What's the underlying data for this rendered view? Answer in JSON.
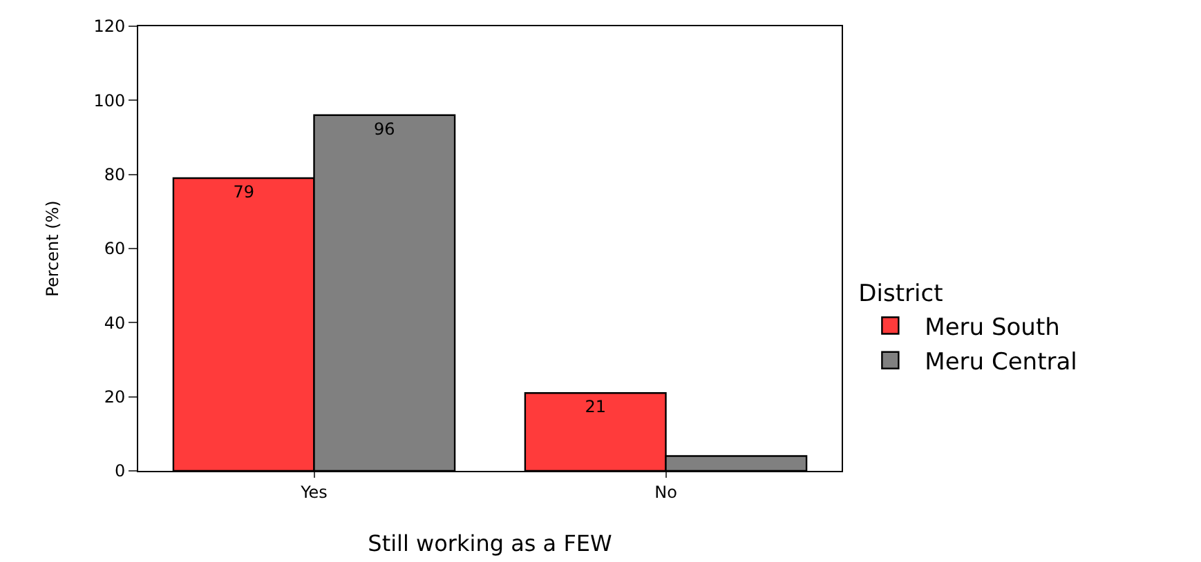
{
  "chart_data": {
    "type": "bar",
    "categories": [
      "Yes",
      "No"
    ],
    "xlabel": "Still working as a FEW",
    "ylabel": "Percent (%)",
    "legend_title": "District",
    "ylim": [
      0,
      120
    ],
    "yticks": [
      0,
      20,
      40,
      60,
      80,
      100,
      120
    ],
    "grid": false,
    "legend": "right",
    "series": [
      {
        "name": "Meru South",
        "color": "#ff3b3b",
        "values": [
          79,
          21
        ],
        "value_labels": [
          "79",
          "21"
        ]
      },
      {
        "name": "Meru Central",
        "color": "#808080",
        "values": [
          96,
          4
        ],
        "value_labels": [
          "96",
          null
        ]
      }
    ]
  }
}
